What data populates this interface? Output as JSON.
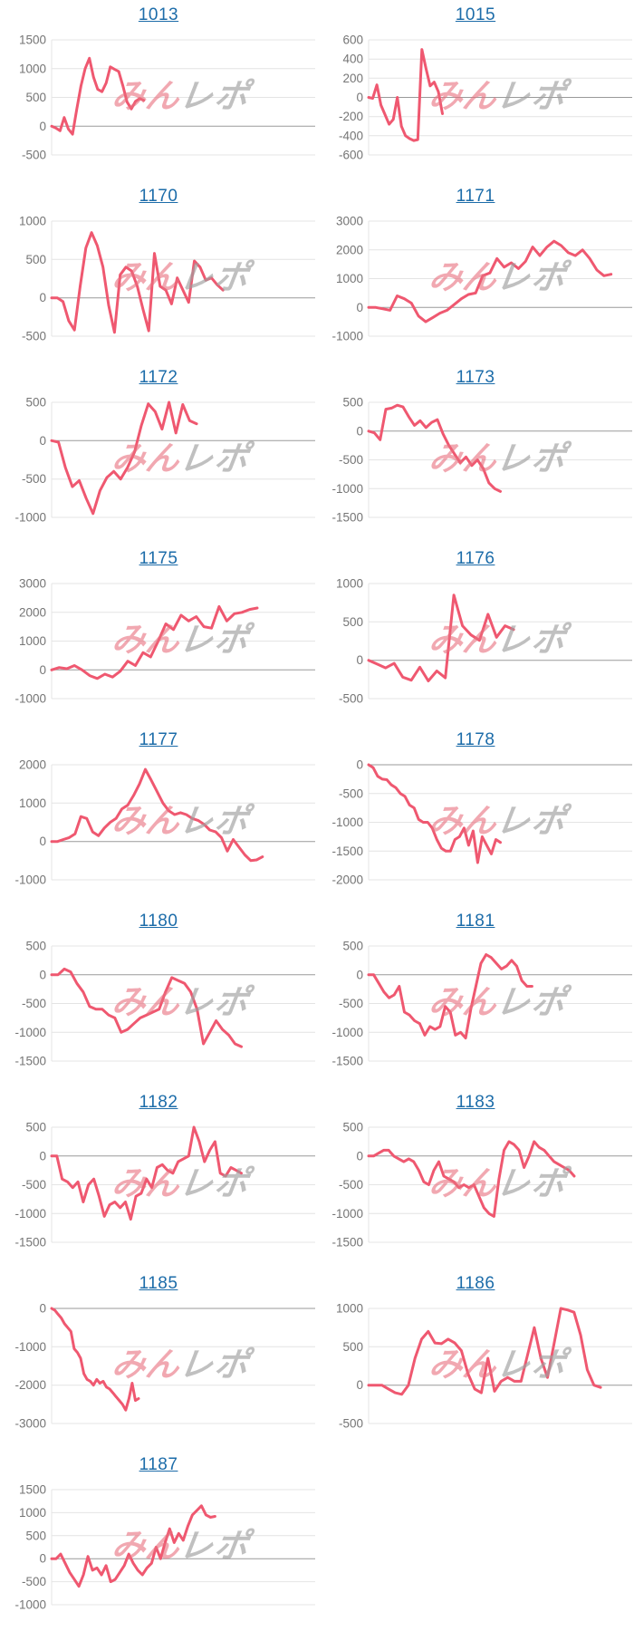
{
  "page": {
    "background": "#ffffff"
  },
  "colors": {
    "line": "#ef5870",
    "link": "#1c6ca9",
    "grid_line": "#e4e4e4",
    "zero_line": "#9a9a9a",
    "tick_label": "#757575",
    "watermark_pink": "#e86e7d",
    "watermark_gray": "#9e9e9e"
  },
  "watermark": {
    "pink_text": "みん",
    "gray_text": "レポ"
  },
  "chart_data": [
    {
      "type": "line",
      "label": "1013",
      "yticks": [
        1500,
        1000,
        500,
        0,
        -500
      ],
      "ylim": [
        -500,
        1500
      ],
      "span": 0.35,
      "values": [
        0,
        -30,
        -80,
        150,
        -50,
        -140,
        300,
        700,
        1000,
        1180,
        850,
        640,
        600,
        750,
        1030,
        990,
        950,
        700,
        420,
        300,
        430,
        480,
        450
      ]
    },
    {
      "type": "line",
      "label": "1015",
      "yticks": [
        600,
        400,
        200,
        0,
        -200,
        -400,
        -600
      ],
      "ylim": [
        -600,
        600
      ],
      "span": 0.28,
      "values": [
        0,
        -10,
        130,
        -80,
        -180,
        -280,
        -230,
        0,
        -300,
        -400,
        -430,
        -450,
        -440,
        500,
        300,
        120,
        160,
        60,
        -170
      ]
    },
    {
      "type": "line",
      "label": "1170",
      "yticks": [
        1000,
        500,
        0,
        -500
      ],
      "ylim": [
        -500,
        1000
      ],
      "span": 0.65,
      "values": [
        0,
        0,
        -50,
        -300,
        -420,
        150,
        650,
        850,
        680,
        400,
        -100,
        -450,
        300,
        400,
        350,
        150,
        -150,
        -430,
        580,
        150,
        100,
        -80,
        260,
        100,
        -60,
        480,
        400,
        230,
        260,
        170,
        100
      ]
    },
    {
      "type": "line",
      "label": "1171",
      "yticks": [
        3000,
        2000,
        1000,
        0,
        -1000
      ],
      "ylim": [
        -1000,
        3000
      ],
      "span": 0.92,
      "values": [
        0,
        0,
        -50,
        -100,
        400,
        300,
        150,
        -300,
        -500,
        -350,
        -200,
        -100,
        100,
        300,
        450,
        500,
        1100,
        1200,
        1700,
        1400,
        1550,
        1350,
        1600,
        2100,
        1800,
        2100,
        2300,
        2150,
        1900,
        1800,
        2000,
        1700,
        1300,
        1100,
        1150
      ]
    },
    {
      "type": "line",
      "label": "1172",
      "yticks": [
        500,
        0,
        -500,
        -1000
      ],
      "ylim": [
        -1000,
        500
      ],
      "span": 0.55,
      "values": [
        0,
        -20,
        -350,
        -600,
        -520,
        -750,
        -950,
        -650,
        -480,
        -400,
        -500,
        -350,
        -150,
        200,
        480,
        380,
        150,
        500,
        100,
        470,
        260,
        220
      ]
    },
    {
      "type": "line",
      "label": "1173",
      "yticks": [
        500,
        0,
        -500,
        -1000,
        -1500
      ],
      "ylim": [
        -1500,
        500
      ],
      "span": 0.5,
      "values": [
        0,
        -30,
        -150,
        380,
        400,
        450,
        420,
        250,
        100,
        180,
        60,
        150,
        200,
        -50,
        -250,
        -400,
        -550,
        -450,
        -600,
        -500,
        -650,
        -900,
        -1000,
        -1050
      ]
    },
    {
      "type": "line",
      "label": "1175",
      "yticks": [
        3000,
        2000,
        1000,
        0,
        -1000
      ],
      "ylim": [
        -1000,
        3000
      ],
      "span": 0.78,
      "values": [
        0,
        80,
        40,
        150,
        0,
        -200,
        -300,
        -150,
        -250,
        -50,
        300,
        150,
        600,
        450,
        1000,
        1600,
        1400,
        1900,
        1700,
        1850,
        1500,
        1450,
        2200,
        1700,
        1950,
        2000,
        2100,
        2150
      ]
    },
    {
      "type": "line",
      "label": "1176",
      "yticks": [
        1000,
        500,
        0,
        -500
      ],
      "ylim": [
        -500,
        1000
      ],
      "span": 0.55,
      "values": [
        0,
        -50,
        -100,
        -40,
        -220,
        -260,
        -90,
        -270,
        -140,
        -230,
        850,
        450,
        330,
        260,
        600,
        300,
        450,
        400
      ]
    },
    {
      "type": "line",
      "label": "1177",
      "yticks": [
        2000,
        1000,
        0,
        -1000
      ],
      "ylim": [
        -1000,
        2000
      ],
      "span": 0.8,
      "values": [
        0,
        0,
        50,
        100,
        200,
        650,
        600,
        250,
        150,
        350,
        500,
        600,
        850,
        950,
        1200,
        1500,
        1880,
        1600,
        1300,
        1000,
        800,
        700,
        750,
        700,
        600,
        550,
        450,
        300,
        250,
        100,
        -250,
        50,
        -150,
        -350,
        -500,
        -480,
        -400
      ]
    },
    {
      "type": "line",
      "label": "1178",
      "yticks": [
        0,
        -500,
        -1000,
        -1500,
        -2000
      ],
      "ylim": [
        -2000,
        0
      ],
      "span": 0.5,
      "values": [
        0,
        -50,
        -200,
        -250,
        -260,
        -350,
        -400,
        -500,
        -550,
        -700,
        -750,
        -950,
        -1000,
        -1000,
        -1100,
        -1300,
        -1450,
        -1500,
        -1500,
        -1300,
        -1250,
        -1100,
        -1400,
        -1150,
        -1700,
        -1250,
        -1400,
        -1550,
        -1300,
        -1350
      ]
    },
    {
      "type": "line",
      "label": "1180",
      "yticks": [
        500,
        0,
        -500,
        -1000,
        -1500
      ],
      "ylim": [
        -1500,
        500
      ],
      "span": 0.72,
      "values": [
        0,
        0,
        100,
        50,
        -150,
        -300,
        -550,
        -600,
        -600,
        -700,
        -750,
        -1000,
        -950,
        -850,
        -750,
        -700,
        -650,
        -600,
        -300,
        -50,
        -100,
        -150,
        -300,
        -600,
        -1200,
        -1000,
        -800,
        -950,
        -1050,
        -1200,
        -1250
      ]
    },
    {
      "type": "line",
      "label": "1181",
      "yticks": [
        500,
        0,
        -500,
        -1000,
        -1500
      ],
      "ylim": [
        -1500,
        500
      ],
      "span": 0.62,
      "values": [
        0,
        0,
        -150,
        -300,
        -400,
        -350,
        -200,
        -650,
        -700,
        -800,
        -850,
        -1050,
        -900,
        -950,
        -900,
        -550,
        -650,
        -1050,
        -1000,
        -1100,
        -600,
        -200,
        200,
        350,
        300,
        200,
        100,
        150,
        250,
        150,
        -100,
        -200,
        -200
      ]
    },
    {
      "type": "line",
      "label": "1182",
      "yticks": [
        500,
        0,
        -500,
        -1000,
        -1500
      ],
      "ylim": [
        -1500,
        500
      ],
      "span": 0.72,
      "values": [
        0,
        0,
        -400,
        -450,
        -550,
        -450,
        -800,
        -500,
        -400,
        -700,
        -1050,
        -850,
        -800,
        -900,
        -800,
        -1100,
        -700,
        -650,
        -400,
        -550,
        -200,
        -150,
        -250,
        -300,
        -100,
        -50,
        0,
        500,
        250,
        -100,
        100,
        250,
        -300,
        -350,
        -200,
        -250,
        -300
      ]
    },
    {
      "type": "line",
      "label": "1183",
      "yticks": [
        500,
        0,
        -500,
        -1000,
        -1500
      ],
      "ylim": [
        -1500,
        500
      ],
      "span": 0.78,
      "values": [
        0,
        0,
        50,
        100,
        100,
        0,
        -50,
        -100,
        -50,
        -100,
        -250,
        -450,
        -500,
        -250,
        -100,
        -350,
        -400,
        -450,
        -550,
        -500,
        -550,
        -500,
        -700,
        -900,
        -1000,
        -1050,
        -400,
        100,
        250,
        200,
        100,
        -200,
        0,
        250,
        150,
        100,
        0,
        -100,
        -150,
        -200,
        -250,
        -350
      ]
    },
    {
      "type": "line",
      "label": "1185",
      "yticks": [
        0,
        -1000,
        -2000,
        -3000
      ],
      "ylim": [
        -3000,
        0
      ],
      "span": 0.33,
      "values": [
        0,
        -50,
        -150,
        -250,
        -400,
        -500,
        -600,
        -1050,
        -1150,
        -1300,
        -1700,
        -1850,
        -1900,
        -2000,
        -1850,
        -1950,
        -1900,
        -2050,
        -2100,
        -2200,
        -2300,
        -2400,
        -2500,
        -2650,
        -2350,
        -1950,
        -2400,
        -2350
      ]
    },
    {
      "type": "line",
      "label": "1186",
      "yticks": [
        1000,
        500,
        0,
        -500
      ],
      "ylim": [
        -500,
        1000
      ],
      "span": 0.88,
      "values": [
        0,
        0,
        0,
        -50,
        -100,
        -120,
        0,
        350,
        600,
        700,
        550,
        540,
        600,
        550,
        450,
        150,
        -50,
        -100,
        350,
        -80,
        50,
        100,
        50,
        50,
        400,
        750,
        350,
        100,
        550,
        1000,
        980,
        950,
        650,
        200,
        0,
        -30
      ]
    },
    {
      "type": "line",
      "label": "1187",
      "yticks": [
        1500,
        1000,
        500,
        0,
        -500,
        -1000
      ],
      "ylim": [
        -1000,
        1500
      ],
      "span": 0.62,
      "values": [
        0,
        0,
        100,
        -100,
        -300,
        -450,
        -600,
        -350,
        50,
        -250,
        -200,
        -350,
        -150,
        -500,
        -450,
        -300,
        -150,
        100,
        -100,
        -250,
        -350,
        -200,
        -100,
        250,
        0,
        350,
        650,
        350,
        550,
        400,
        700,
        950,
        1050,
        1150,
        950,
        900,
        920
      ]
    }
  ]
}
